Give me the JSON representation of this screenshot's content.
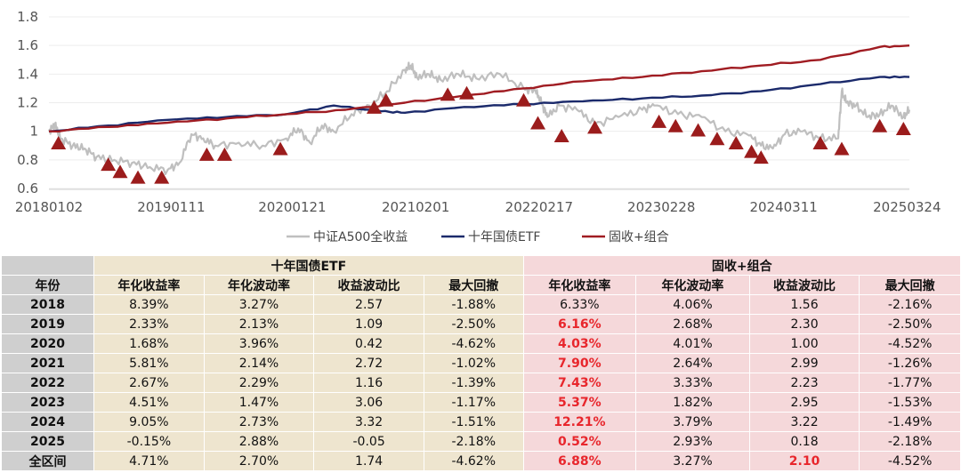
{
  "chart_data": {
    "type": "line",
    "ylim": [
      0.6,
      1.8
    ],
    "yticks": [
      "1.8",
      "1.6",
      "1.4",
      "1.2",
      "1",
      "0.8",
      "0.6"
    ],
    "ytick_values": [
      1.8,
      1.6,
      1.4,
      1.2,
      1.0,
      0.8,
      0.6
    ],
    "xlim": [
      2018.0,
      2025.25
    ],
    "xticks": [
      "20180102",
      "20190111",
      "20200121",
      "20210201",
      "20220217",
      "20230228",
      "20240311",
      "20250324"
    ],
    "xtick_values": [
      2018.0,
      2019.03,
      2020.05,
      2021.09,
      2022.13,
      2023.16,
      2024.19,
      2025.23
    ],
    "legend": [
      "中证A500全收益",
      "十年国债ETF",
      "固收+组合"
    ],
    "legend_position": "bottom",
    "series": [
      {
        "name": "中证A500全收益",
        "color": "#bfbfbf",
        "x": [
          2018.0,
          2018.05,
          2018.1,
          2018.2,
          2018.3,
          2018.4,
          2018.55,
          2018.7,
          2018.85,
          2019.0,
          2019.1,
          2019.2,
          2019.3,
          2019.4,
          2019.6,
          2019.8,
          2020.0,
          2020.1,
          2020.2,
          2020.3,
          2020.4,
          2020.55,
          2020.7,
          2020.85,
          2021.0,
          2021.05,
          2021.1,
          2021.2,
          2021.3,
          2021.45,
          2021.6,
          2021.8,
          2022.0,
          2022.1,
          2022.15,
          2022.2,
          2022.3,
          2022.45,
          2022.6,
          2022.8,
          2023.0,
          2023.1,
          2023.3,
          2023.5,
          2023.7,
          2023.9,
          2024.0,
          2024.1,
          2024.2,
          2024.35,
          2024.5,
          2024.65,
          2024.68,
          2024.72,
          2024.8,
          2024.9,
          2025.0,
          2025.1,
          2025.2,
          2025.25
        ],
        "values": [
          1.0,
          1.05,
          0.95,
          0.9,
          0.88,
          0.82,
          0.8,
          0.78,
          0.75,
          0.73,
          0.78,
          0.98,
          0.95,
          0.9,
          0.92,
          0.9,
          0.95,
          1.02,
          0.92,
          1.04,
          1.0,
          1.12,
          1.18,
          1.28,
          1.43,
          1.46,
          1.38,
          1.4,
          1.36,
          1.4,
          1.37,
          1.4,
          1.3,
          1.28,
          1.2,
          1.1,
          1.18,
          1.15,
          1.05,
          1.1,
          1.15,
          1.18,
          1.12,
          1.1,
          1.0,
          0.97,
          0.9,
          0.88,
          0.98,
          1.0,
          0.95,
          0.95,
          1.28,
          1.2,
          1.18,
          1.1,
          1.12,
          1.18,
          1.1,
          1.15
        ]
      },
      {
        "name": "十年国债ETF",
        "color": "#1b2a6b",
        "x": [
          2018.0,
          2018.5,
          2019.0,
          2019.5,
          2020.0,
          2020.4,
          2020.8,
          2021.0,
          2021.5,
          2022.0,
          2022.5,
          2023.0,
          2023.5,
          2024.0,
          2024.5,
          2025.0,
          2025.25
        ],
        "values": [
          1.0,
          1.04,
          1.08,
          1.1,
          1.12,
          1.18,
          1.14,
          1.13,
          1.17,
          1.19,
          1.21,
          1.23,
          1.25,
          1.28,
          1.33,
          1.38,
          1.38
        ]
      },
      {
        "name": "固收+组合",
        "color": "#a01c22",
        "x": [
          2018.0,
          2018.5,
          2019.0,
          2019.5,
          2020.0,
          2020.5,
          2021.0,
          2021.5,
          2022.0,
          2022.5,
          2023.0,
          2023.5,
          2024.0,
          2024.5,
          2025.0,
          2025.25
        ],
        "values": [
          1.0,
          1.03,
          1.06,
          1.09,
          1.12,
          1.15,
          1.2,
          1.25,
          1.3,
          1.35,
          1.38,
          1.42,
          1.46,
          1.5,
          1.59,
          1.6
        ]
      }
    ],
    "markers": {
      "name": "triangles",
      "color": "#9b1c1c",
      "x": [
        2018.08,
        2018.5,
        2018.6,
        2018.75,
        2018.95,
        2019.33,
        2019.48,
        2019.95,
        2020.74,
        2020.84,
        2021.36,
        2021.52,
        2022.0,
        2022.12,
        2022.32,
        2022.6,
        2023.14,
        2023.28,
        2023.47,
        2023.63,
        2023.79,
        2023.92,
        2024.0,
        2024.5,
        2024.68,
        2025.0,
        2025.2
      ],
      "values": [
        0.92,
        0.77,
        0.72,
        0.68,
        0.68,
        0.84,
        0.84,
        0.88,
        1.17,
        1.22,
        1.26,
        1.27,
        1.22,
        1.06,
        0.97,
        1.03,
        1.07,
        1.04,
        1.01,
        0.95,
        0.92,
        0.86,
        0.82,
        0.92,
        0.88,
        1.04,
        1.02
      ]
    }
  },
  "table": {
    "year_header": "年份",
    "group1_title": "十年国债ETF",
    "group2_title": "固收+组合",
    "metric_headers": [
      "年化收益率",
      "年化波动率",
      "收益波动比",
      "最大回撤"
    ],
    "rows": [
      {
        "year": "2018",
        "g1": [
          "8.39%",
          "3.27%",
          "2.57",
          "-1.88%"
        ],
        "g2": [
          "6.33%",
          "4.06%",
          "1.56",
          "-2.16%"
        ]
      },
      {
        "year": "2019",
        "g1": [
          "2.33%",
          "2.13%",
          "1.09",
          "-2.50%"
        ],
        "g2": [
          "6.16%",
          "2.68%",
          "2.30",
          "-2.50%"
        ]
      },
      {
        "year": "2020",
        "g1": [
          "1.68%",
          "3.96%",
          "0.42",
          "-4.62%"
        ],
        "g2": [
          "4.03%",
          "4.01%",
          "1.00",
          "-4.52%"
        ]
      },
      {
        "year": "2021",
        "g1": [
          "5.81%",
          "2.14%",
          "2.72",
          "-1.02%"
        ],
        "g2": [
          "7.90%",
          "2.64%",
          "2.99",
          "-1.26%"
        ]
      },
      {
        "year": "2022",
        "g1": [
          "2.67%",
          "2.29%",
          "1.16",
          "-1.39%"
        ],
        "g2": [
          "7.43%",
          "3.33%",
          "2.23",
          "-1.77%"
        ]
      },
      {
        "year": "2023",
        "g1": [
          "4.51%",
          "1.47%",
          "3.06",
          "-1.17%"
        ],
        "g2": [
          "5.37%",
          "1.82%",
          "2.95",
          "-1.53%"
        ]
      },
      {
        "year": "2024",
        "g1": [
          "9.05%",
          "2.73%",
          "3.32",
          "-1.51%"
        ],
        "g2": [
          "12.21%",
          "3.79%",
          "3.22",
          "-1.49%"
        ]
      },
      {
        "year": "2025",
        "g1": [
          "-0.15%",
          "2.88%",
          "-0.05",
          "-2.18%"
        ],
        "g2": [
          "0.52%",
          "2.93%",
          "0.18",
          "-2.18%"
        ]
      },
      {
        "year": "全区间",
        "g1": [
          "4.71%",
          "2.70%",
          "1.74",
          "-4.62%"
        ],
        "g2": [
          "6.88%",
          "3.27%",
          "2.10",
          "-4.52%"
        ]
      }
    ],
    "highlight_color": "#e8262c"
  }
}
